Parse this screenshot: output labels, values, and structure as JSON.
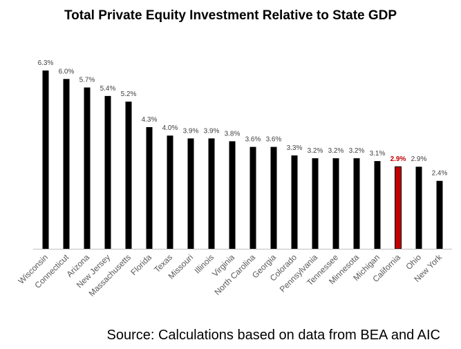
{
  "chart_data": {
    "type": "bar",
    "title": "Total Private Equity Investment Relative to State GDP",
    "xlabel": "",
    "ylabel": "",
    "ylim": [
      0,
      6.3
    ],
    "grid": false,
    "legend": "none",
    "categories": [
      "Wisconsin",
      "Connecticut",
      "Arizona",
      "New Jersey",
      "Massachusetts",
      "Florida",
      "Texas",
      "Missouri",
      "Illinois",
      "Virginia",
      "North Carolina",
      "Georgia",
      "Colorado",
      "Pennsylvania",
      "Tennessee",
      "Minnesota",
      "Michigan",
      "California",
      "Ohio",
      "New York"
    ],
    "values": [
      6.3,
      6.0,
      5.7,
      5.4,
      5.2,
      4.3,
      4.0,
      3.9,
      3.9,
      3.8,
      3.6,
      3.6,
      3.3,
      3.2,
      3.2,
      3.2,
      3.1,
      2.9,
      2.9,
      2.4
    ],
    "labels": [
      "6.3%",
      "6.0%",
      "5.7%",
      "5.4%",
      "5.2%",
      "4.3%",
      "4.0%",
      "3.9%",
      "3.9%",
      "3.8%",
      "3.6%",
      "3.6%",
      "3.3%",
      "3.2%",
      "3.2%",
      "3.2%",
      "3.1%",
      "2.9%",
      "2.9%",
      "2.4%"
    ],
    "highlight_category": "California",
    "bar_color": "#000000",
    "highlight_color": "#c00000",
    "highlight_label_color": "#c00000",
    "label_color": "#404040",
    "tick_label_color": "#595959",
    "axis_color": "#bfbfbf"
  },
  "source": "Source: Calculations based on data from BEA and AIC"
}
